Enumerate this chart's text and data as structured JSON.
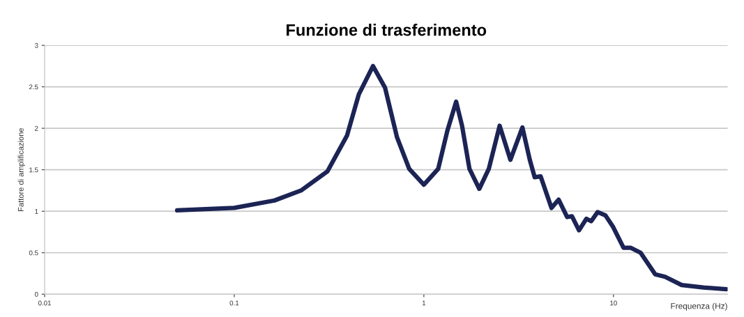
{
  "chart_data": {
    "type": "line",
    "title": "Funzione di trasferimento",
    "xlabel": "Frequenza (Hz)",
    "ylabel": "Fattore di amplificazione",
    "log": "x",
    "xlim": [
      0.01,
      40
    ],
    "xticks": [
      0.01,
      0.1,
      1,
      10
    ],
    "ylim": [
      0,
      3
    ],
    "yticks": [
      0,
      0.5,
      1,
      1.5,
      2,
      2.5,
      3
    ],
    "grid": "y",
    "marker": "none",
    "line_style": "solid",
    "series": [
      {
        "color": "#1c2455",
        "x": [
          0.05,
          0.1,
          0.163,
          0.225,
          0.31,
          0.393,
          0.454,
          0.539,
          0.624,
          0.722,
          0.837,
          1.0,
          1.19,
          1.33,
          1.48,
          1.59,
          1.74,
          1.96,
          2.2,
          2.51,
          2.86,
          3.31,
          3.62,
          3.84,
          4.13,
          4.71,
          5.14,
          5.7,
          6.04,
          6.58,
          7.2,
          7.63,
          8.25,
          9.07,
          9.96,
          11.3,
          12.3,
          13.9,
          16.6,
          18.7,
          22.9,
          29.8,
          39.4
        ],
        "values": [
          1.01,
          1.04,
          1.13,
          1.25,
          1.48,
          1.91,
          2.41,
          2.75,
          2.49,
          1.89,
          1.51,
          1.32,
          1.51,
          1.97,
          2.32,
          2.03,
          1.51,
          1.27,
          1.51,
          2.03,
          1.62,
          2.01,
          1.62,
          1.41,
          1.42,
          1.04,
          1.14,
          0.93,
          0.94,
          0.77,
          0.91,
          0.88,
          0.99,
          0.95,
          0.81,
          0.56,
          0.56,
          0.5,
          0.24,
          0.21,
          0.11,
          0.08,
          0.06
        ]
      }
    ]
  }
}
